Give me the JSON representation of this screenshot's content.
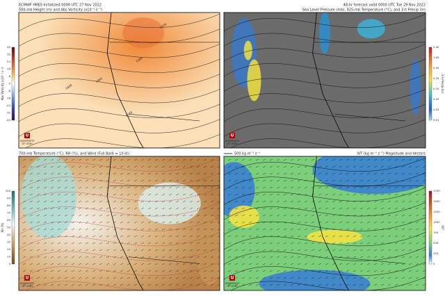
{
  "panels": [
    {
      "titles": [
        "ECMWF HRES Initialized 0000 UTC 27 Nov 2022",
        "500-mb Height (m) and Abs Vorticity (x10⁻⁵ s⁻¹)"
      ],
      "colorbar": {
        "label": "Abs Vorticity (x10⁻⁵ s⁻¹)",
        "ticks": [
          "40",
          "32",
          "24",
          "16",
          "8",
          "0",
          "-8",
          "-16",
          "-24",
          "-32",
          "-40"
        ]
      },
      "contour_labels": [
        "5220",
        "5280",
        "5400",
        "5460",
        "5580"
      ]
    },
    {
      "titles": [
        "48-hr forecast valid 0000 UTC Tue 29 Nov 2022",
        "Sea Level Pressure (mb), 925-mb Temperature (°C), and 3-h Precip (in)"
      ],
      "colorbar": {
        "label": "3-h Precip (in)",
        "ticks": [
          "2.00",
          "1.00",
          "0.50",
          "0.25",
          "0.10",
          "0.05",
          "0.02",
          "0.01"
        ]
      }
    },
    {
      "titles": [
        "700-mb Temperature (°C), RH (%), and Wind (Full Barb = 10 kt)"
      ],
      "colorbar": {
        "label": "RH (%)",
        "ticks": [
          "100",
          "90",
          "80",
          "70",
          "60",
          "50",
          "40",
          "30",
          "20",
          "10",
          "0"
        ]
      }
    },
    {
      "titles": [
        "IVT (kg m⁻¹ s⁻¹) Magnitude and Vectors"
      ],
      "reference": "500 kg m⁻¹ s⁻¹",
      "colorbar": {
        "label": "IVT",
        "ticks": [
          "1750",
          "1500",
          "1250",
          "1000",
          "750",
          "500",
          "250",
          "0"
        ]
      }
    }
  ],
  "logo": [
    "U",
    "UNIVERSITY",
    "OF UTAH"
  ]
}
